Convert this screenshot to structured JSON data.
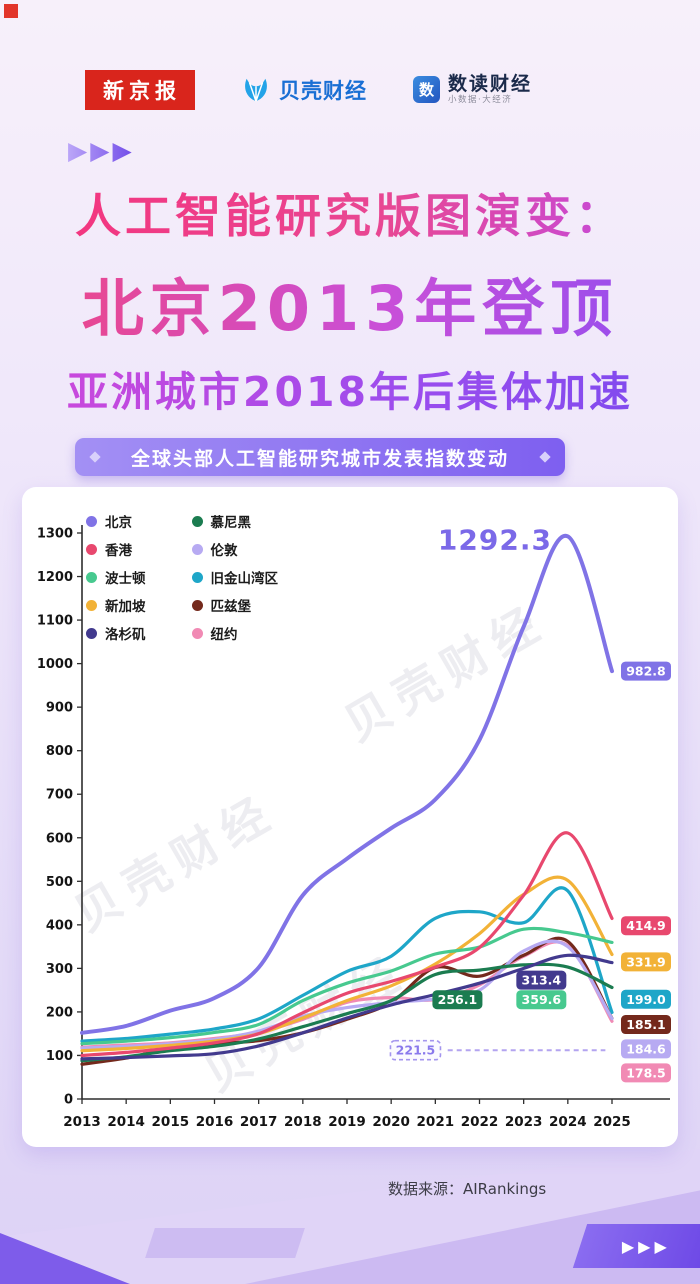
{
  "colors": {
    "brand_red": "#d9251c",
    "brand_blue": "#1a6fd4",
    "accent_purple": "#7c5cf0",
    "title_pink": "#f5327b",
    "banner_purple": "#8a72f2"
  },
  "header": {
    "xinjingbao": "新京报",
    "beike": "贝壳财经",
    "shudu": "数读财经",
    "shudu_sub": "小数据·大经济",
    "shudu_icon": "数",
    "arrows": "▶▶▶"
  },
  "title": {
    "line1": "人工智能研究版图演变：",
    "line2": "北京2013年登顶",
    "line3": "亚洲城市2018年后集体加速"
  },
  "banner": {
    "label": "全球头部人工智能研究城市发表指数变动"
  },
  "watermark": "贝壳财经",
  "source": {
    "label": "数据来源：AIRankings"
  },
  "footer": {
    "arrows": "▶▶▶"
  },
  "chart_data": {
    "type": "line",
    "title": "全球头部人工智能研究城市发表指数变动",
    "x": [
      2013,
      2014,
      2015,
      2016,
      2017,
      2018,
      2019,
      2020,
      2021,
      2022,
      2023,
      2024,
      2025
    ],
    "xlabel": "",
    "ylabel": "",
    "ylim": [
      0,
      1300
    ],
    "ytick_step": 100,
    "grid": false,
    "legend_position": "top-left-two-columns",
    "series": [
      {
        "name": "北京",
        "color": "#8073e6",
        "width": 4,
        "values": [
          152,
          168,
          203,
          232,
          302,
          468,
          552,
          622,
          688,
          825,
          1085,
          1292.3,
          982.8
        ]
      },
      {
        "name": "香港",
        "color": "#e8486e",
        "values": [
          100,
          107,
          117,
          129,
          150,
          198,
          243,
          270,
          303,
          348,
          468,
          611,
          414.9
        ]
      },
      {
        "name": "波士顿",
        "color": "#47c98f",
        "values": [
          127,
          133,
          141,
          153,
          171,
          226,
          266,
          294,
          333,
          349,
          390,
          382,
          359.6
        ]
      },
      {
        "name": "新加坡",
        "color": "#f2b237",
        "values": [
          111,
          116,
          123,
          133,
          150,
          186,
          226,
          260,
          310,
          380,
          470,
          502,
          331.9
        ]
      },
      {
        "name": "洛杉矶",
        "color": "#423a8e",
        "values": [
          92,
          95,
          99,
          104,
          122,
          152,
          186,
          216,
          240,
          266,
          300,
          330,
          313.4
        ]
      },
      {
        "name": "慕尼黑",
        "color": "#1b7c50",
        "values": [
          88,
          97,
          111,
          121,
          138,
          166,
          196,
          226,
          286,
          296,
          308,
          303,
          256.1
        ]
      },
      {
        "name": "伦敦",
        "color": "#b7aaf2",
        "values": [
          117,
          121,
          127,
          137,
          156,
          190,
          210,
          221.5,
          230,
          250,
          340,
          350,
          184.6
        ]
      },
      {
        "name": "旧金山湾区",
        "color": "#1ea6c8",
        "values": [
          133,
          139,
          149,
          161,
          184,
          238,
          293,
          328,
          415,
          430,
          405,
          478,
          199.0
        ]
      },
      {
        "name": "匹兹堡",
        "color": "#74291c",
        "values": [
          80,
          94,
          116,
          127,
          134,
          152,
          183,
          222,
          302,
          282,
          330,
          362,
          185.1
        ]
      },
      {
        "name": "纽约",
        "color": "#f18ab4",
        "values": [
          119,
          124,
          129,
          139,
          153,
          183,
          222,
          233,
          228,
          262,
          328,
          352,
          178.5
        ]
      }
    ],
    "annotations": {
      "peak": {
        "text": "1292.3",
        "x": 2022.35,
        "y": 1262,
        "color": "#7b69e8"
      },
      "boxes": [
        {
          "text": "982.8",
          "x": 2025,
          "y": 982.8,
          "dx": 9,
          "align": "left",
          "bg": "#8073e6"
        },
        {
          "text": "414.9",
          "x": 2025,
          "y": 398,
          "dx": 9,
          "align": "left",
          "bg": "#e8486e"
        },
        {
          "text": "331.9",
          "x": 2025,
          "y": 315,
          "dx": 9,
          "align": "left",
          "bg": "#f2b237"
        },
        {
          "text": "199.0",
          "x": 2025,
          "y": 229,
          "dx": 9,
          "align": "left",
          "bg": "#1ea6c8"
        },
        {
          "text": "185.1",
          "x": 2025,
          "y": 171,
          "dx": 9,
          "align": "left",
          "bg": "#74291c"
        },
        {
          "text": "184.6",
          "x": 2025,
          "y": 115,
          "dx": 9,
          "align": "left",
          "bg": "#b7aaf2"
        },
        {
          "text": "178.5",
          "x": 2025,
          "y": 60,
          "dx": 9,
          "align": "left",
          "bg": "#f18ab4"
        },
        {
          "text": "313.4",
          "x": 2023.4,
          "y": 273,
          "align": "center",
          "bg": "#423a8e"
        },
        {
          "text": "359.6",
          "x": 2023.4,
          "y": 228,
          "align": "center",
          "bg": "#47c98f"
        },
        {
          "text": "256.1",
          "x": 2021.5,
          "y": 228,
          "align": "center",
          "bg": "#1b7c50"
        },
        {
          "text": "221.5",
          "x": 2020.55,
          "y": 112,
          "align": "center",
          "bg": "#fbfaff",
          "color": "#8a79ec",
          "border": "dashed"
        }
      ],
      "dashed_line": {
        "x1": 2021.28,
        "x2": 2024.85,
        "y": 112,
        "color": "#b3a4f0"
      }
    }
  }
}
